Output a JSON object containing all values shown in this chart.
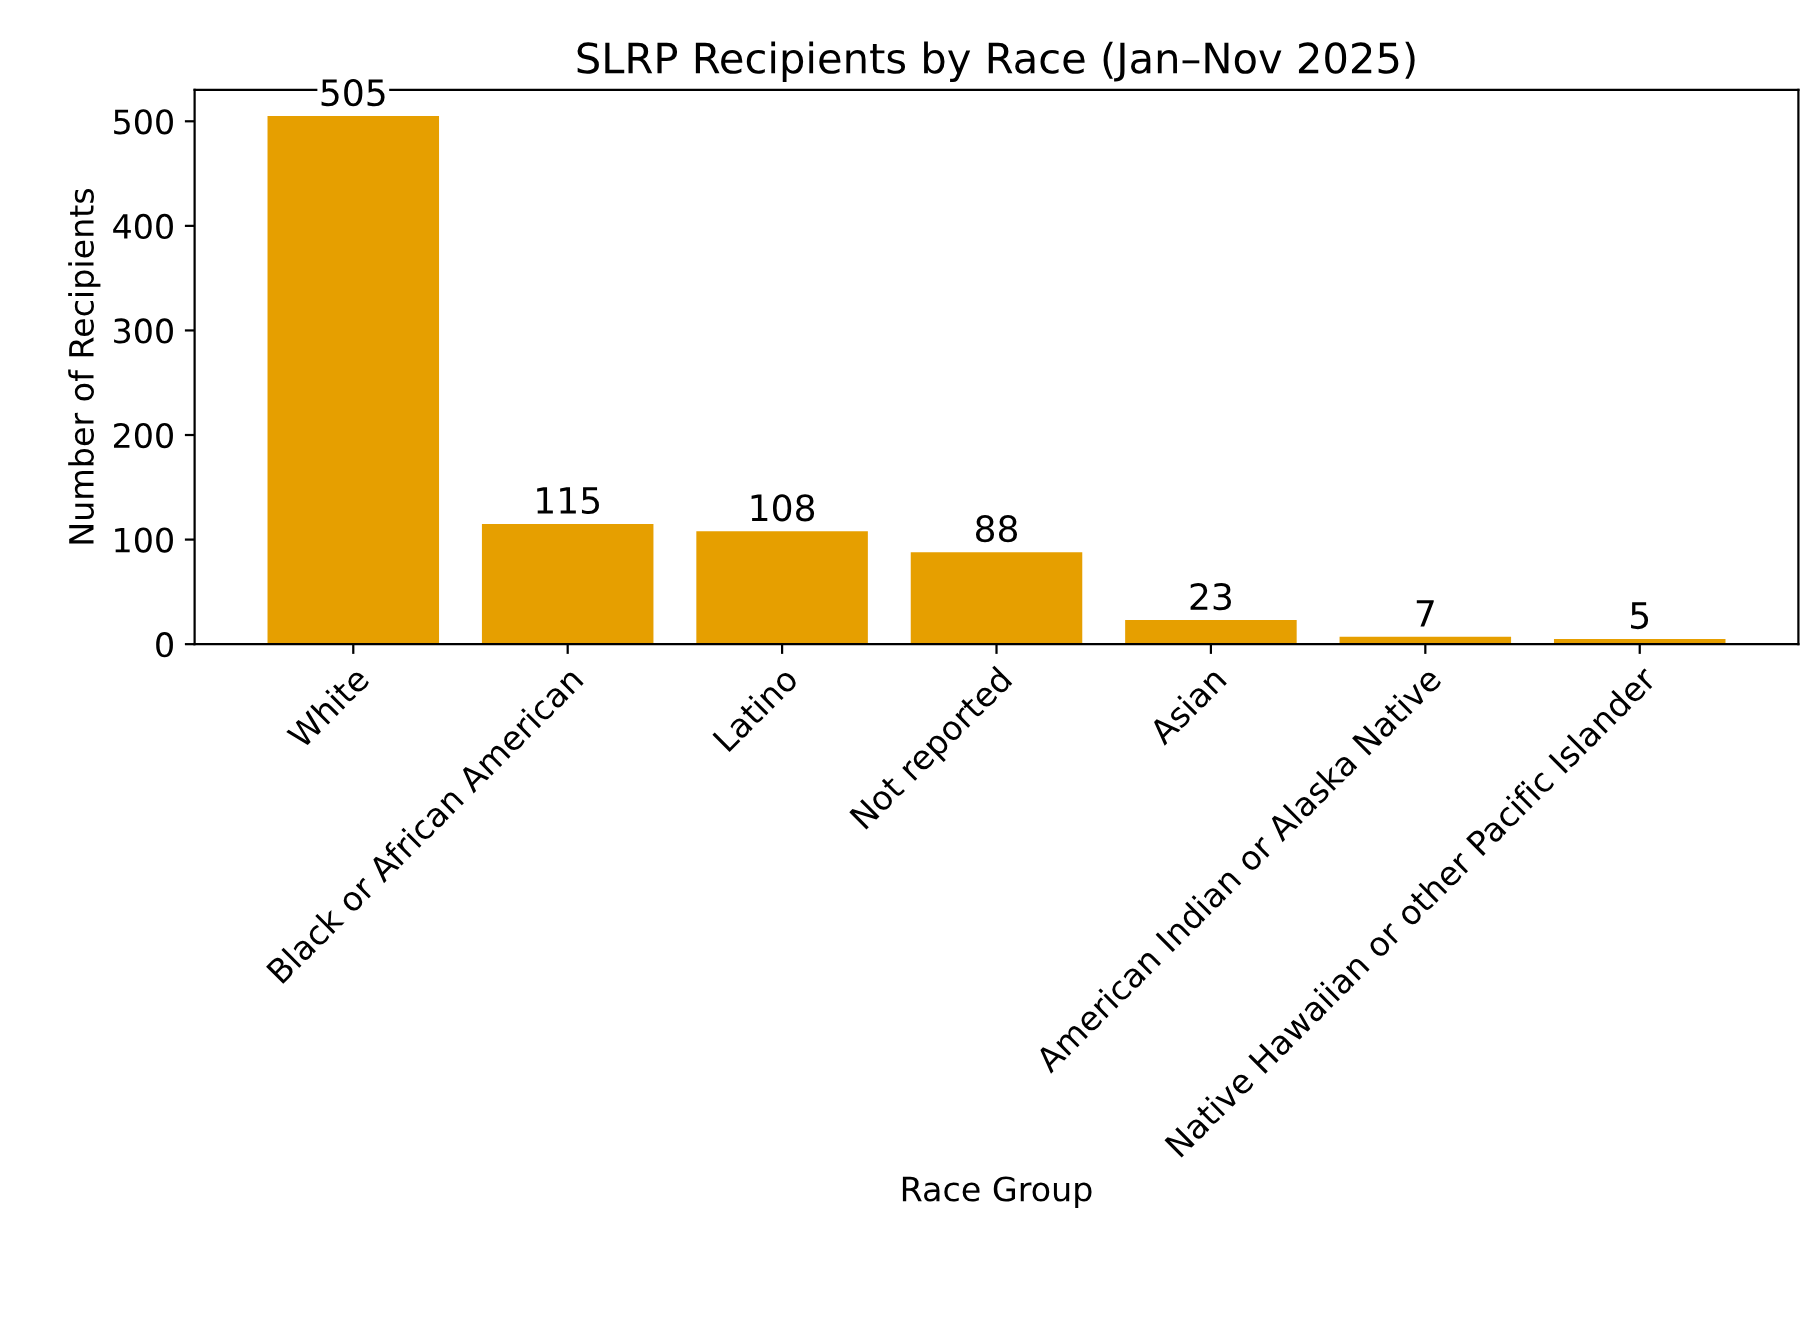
{
  "chart_data": {
    "type": "bar",
    "title": "SLRP Recipients by Race (Jan–Nov 2025)",
    "xlabel": "Race Group",
    "ylabel": "Number of Recipients",
    "categories": [
      "White",
      "Black or African American",
      "Latino",
      "Not reported",
      "Asian",
      "American Indian or Alaska Native",
      "Native Hawaiian or other Pacific Islander"
    ],
    "values": [
      505,
      115,
      108,
      88,
      23,
      7,
      5
    ],
    "color": "#e69f00",
    "ylim": [
      0,
      530
    ],
    "yticks": [
      0,
      100,
      200,
      300,
      400,
      500
    ],
    "grid": false,
    "data_labels": true
  }
}
